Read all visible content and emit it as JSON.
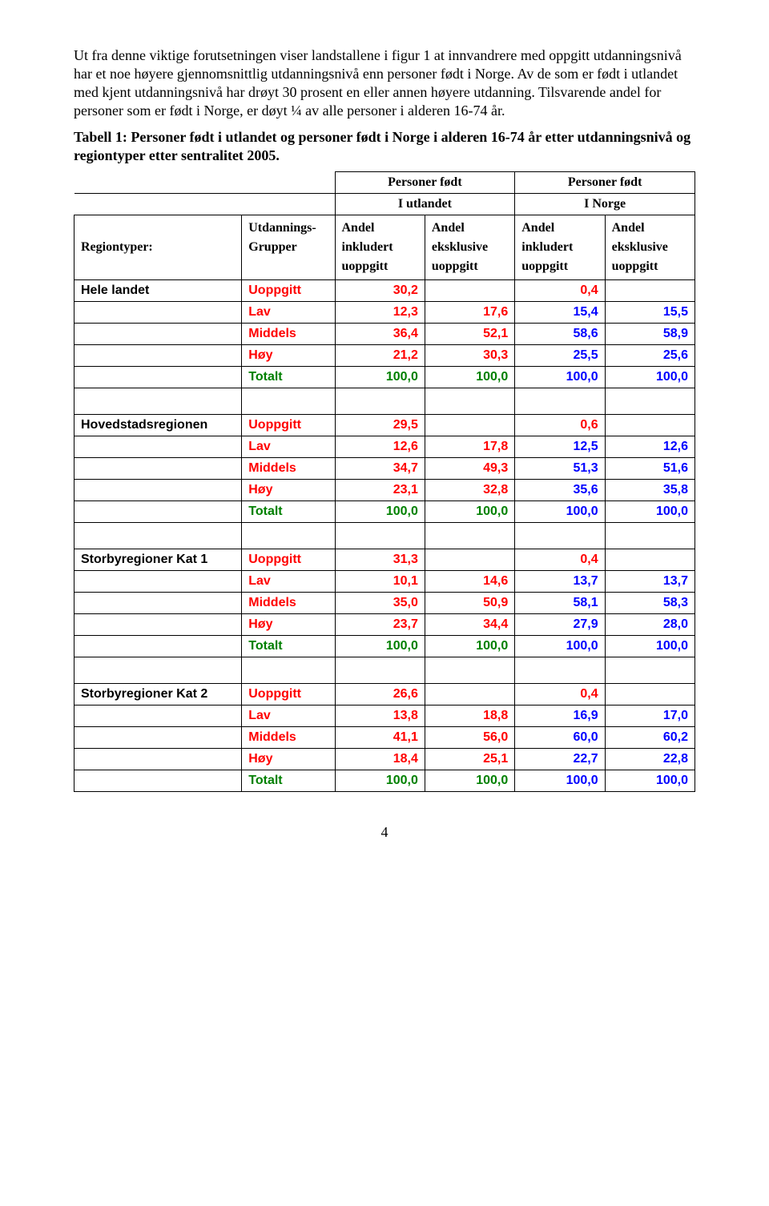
{
  "colors": {
    "text_black": "#000000",
    "red": "#ff0000",
    "green": "#008000",
    "blue": "#0000ff"
  },
  "paragraphs": {
    "p1": "Ut fra denne viktige forutsetningen viser landstallene i figur 1 at innvandrere med oppgitt utdanningsnivå har et noe høyere gjennomsnittlig utdanningsnivå enn personer født i Norge. Av de som er født i utlandet med kjent utdanningsnivå har drøyt 30 prosent en eller annen høyere utdanning. Tilsvarende andel for personer som er født i Norge, er døyt ¼ av alle personer i alderen 16-74 år.",
    "caption": "Tabell 1: Personer født i utlandet og personer født i Norge i alderen 16-74 år etter utdanningsnivå og regiontyper etter sentralitet 2005."
  },
  "table": {
    "header_top": {
      "col_ab": "Personer født",
      "col_cd": "Personer født"
    },
    "header_mid": {
      "col_ab": "I utlandet",
      "col_cd": "I Norge"
    },
    "header_row": {
      "regiontyper": "Regiontyper:",
      "grupper_l1": "Utdannings-",
      "grupper_l2": "Grupper",
      "a": "Andel inkludert uoppgitt",
      "b": "Andel eksklusive uoppgitt",
      "c": "Andel inkludert uoppgitt",
      "d": "Andel eksklusive uoppgitt"
    },
    "edu_labels": {
      "uoppgitt": "Uoppgitt",
      "lav": "Lav",
      "middels": "Middels",
      "hoy": "Høy",
      "totalt": "Totalt"
    },
    "sections": [
      {
        "name": "Hele landet",
        "rows": {
          "uoppgitt": {
            "a": "30,2",
            "b": "",
            "c": "0,4",
            "d": ""
          },
          "lav": {
            "a": "12,3",
            "b": "17,6",
            "c": "15,4",
            "d": "15,5"
          },
          "middels": {
            "a": "36,4",
            "b": "52,1",
            "c": "58,6",
            "d": "58,9"
          },
          "hoy": {
            "a": "21,2",
            "b": "30,3",
            "c": "25,5",
            "d": "25,6"
          },
          "totalt": {
            "a": "100,0",
            "b": "100,0",
            "c": "100,0",
            "d": "100,0"
          }
        }
      },
      {
        "name": "Hovedstadsregionen",
        "rows": {
          "uoppgitt": {
            "a": "29,5",
            "b": "",
            "c": "0,6",
            "d": ""
          },
          "lav": {
            "a": "12,6",
            "b": "17,8",
            "c": "12,5",
            "d": "12,6"
          },
          "middels": {
            "a": "34,7",
            "b": "49,3",
            "c": "51,3",
            "d": "51,6"
          },
          "hoy": {
            "a": "23,1",
            "b": "32,8",
            "c": "35,6",
            "d": "35,8"
          },
          "totalt": {
            "a": "100,0",
            "b": "100,0",
            "c": "100,0",
            "d": "100,0"
          }
        }
      },
      {
        "name": "Storbyregioner Kat 1",
        "rows": {
          "uoppgitt": {
            "a": "31,3",
            "b": "",
            "c": "0,4",
            "d": ""
          },
          "lav": {
            "a": "10,1",
            "b": "14,6",
            "c": "13,7",
            "d": "13,7"
          },
          "middels": {
            "a": "35,0",
            "b": "50,9",
            "c": "58,1",
            "d": "58,3"
          },
          "hoy": {
            "a": "23,7",
            "b": "34,4",
            "c": "27,9",
            "d": "28,0"
          },
          "totalt": {
            "a": "100,0",
            "b": "100,0",
            "c": "100,0",
            "d": "100,0"
          }
        }
      },
      {
        "name": "Storbyregioner Kat 2",
        "rows": {
          "uoppgitt": {
            "a": "26,6",
            "b": "",
            "c": "0,4",
            "d": ""
          },
          "lav": {
            "a": "13,8",
            "b": "18,8",
            "c": "16,9",
            "d": "17,0"
          },
          "middels": {
            "a": "41,1",
            "b": "56,0",
            "c": "60,0",
            "d": "60,2"
          },
          "hoy": {
            "a": "18,4",
            "b": "25,1",
            "c": "22,7",
            "d": "22,8"
          },
          "totalt": {
            "a": "100,0",
            "b": "100,0",
            "c": "100,0",
            "d": "100,0"
          }
        }
      }
    ]
  },
  "page_number": "4"
}
